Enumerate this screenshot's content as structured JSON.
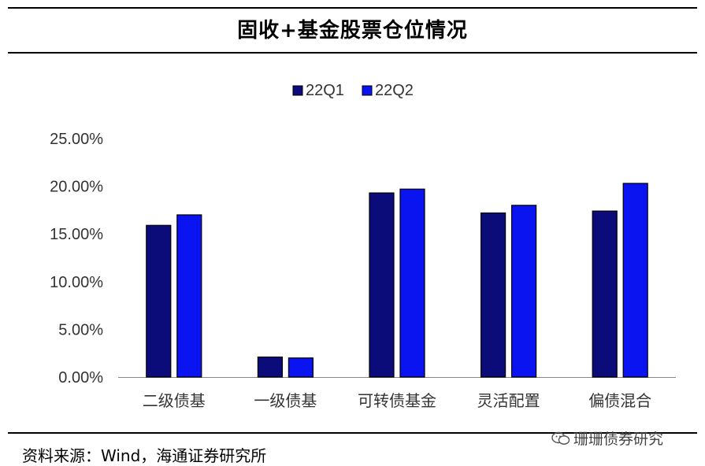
{
  "title": "固收+基金股票仓位情况",
  "source": "资料来源：Wind，海通证券研究所",
  "watermark": "珊珊债券研究",
  "colors": {
    "series1": "#0b0b7a",
    "series2": "#0a14f0",
    "axis": "#888888",
    "rule": "#000000"
  },
  "chart_data": {
    "type": "bar",
    "categories": [
      "二级债基",
      "一级债基",
      "可转债基金",
      "灵活配置",
      "偏债混合"
    ],
    "series": [
      {
        "name": "22Q1",
        "values": [
          15.9,
          2.1,
          19.3,
          17.2,
          17.4
        ]
      },
      {
        "name": "22Q2",
        "values": [
          17.0,
          2.0,
          19.7,
          18.0,
          20.3
        ]
      }
    ],
    "yticks": [
      "0.00%",
      "5.00%",
      "10.00%",
      "15.00%",
      "20.00%",
      "25.00%"
    ],
    "ylim": [
      0,
      25
    ],
    "legend_position": "top-center",
    "grid": false
  }
}
